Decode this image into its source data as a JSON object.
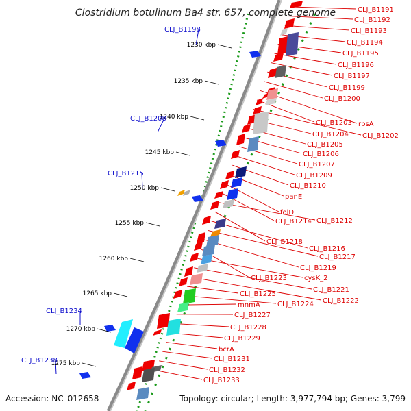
{
  "title": "Clostridium botulinum Ba4 str. 657, complete genome",
  "accession": "Accession: NC_012658",
  "topology": "Topology: circular; Length: 3,977,794 bp; Genes: 3,799",
  "colors": {
    "backbone": "#808080",
    "tick_dots": "#1a9a1a",
    "forward_label": "#1010cc",
    "reverse_label": "#dd0000",
    "gene_red": "#ee0000",
    "gene_blue": "#1030ee"
  },
  "ticks": [
    "1230 kbp",
    "1235 kbp",
    "1240 kbp",
    "1245 kbp",
    "1250 kbp",
    "1255 kbp",
    "1260 kbp",
    "1265 kbp",
    "1270 kbp",
    "1275 kbp"
  ],
  "forward_labels": [
    "CLJ_B1198",
    "CLJ_B1208",
    "CLJ_B1215",
    "CLJ_B1234",
    "CLJ_B1238"
  ],
  "reverse_labels": [
    "CLJ_B1191",
    "CLJ_B1192",
    "CLJ_B1193",
    "CLJ_B1194",
    "CLJ_B1195",
    "CLJ_B1196",
    "CLJ_B1197",
    "CLJ_B1199",
    "CLJ_B1200",
    "rpsA",
    "CLJ_B1203",
    "CLJ_B1202",
    "CLJ_B1204",
    "CLJ_B1205",
    "CLJ_B1206",
    "CLJ_B1207",
    "CLJ_B1209",
    "CLJ_B1210",
    "panE",
    "folD",
    "CLJ_B1214",
    "CLJ_B1212",
    "CLJ_B1218",
    "CLJ_B1216",
    "CLJ_B1217",
    "CLJ_B1219",
    "CLJ_B1223",
    "cysK_2",
    "CLJ_B1221",
    "CLJ_B1222",
    "CLJ_B1225",
    "CLJ_B1224",
    "mnmA",
    "CLJ_B1227",
    "CLJ_B1228",
    "CLJ_B1229",
    "bcrA",
    "CLJ_B1231",
    "CLJ_B1232",
    "CLJ_B1233"
  ]
}
